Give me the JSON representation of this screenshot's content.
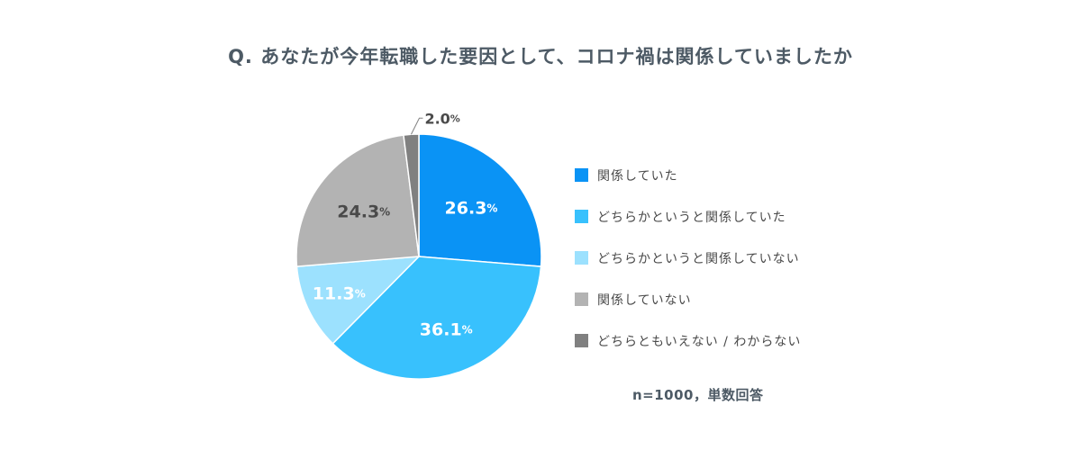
{
  "title": "Q. あなたが今年転職した要因として、コロナ禍は関係していましたか",
  "note": "n=1000，単数回答",
  "chart_data": {
    "type": "pie",
    "title": "Q. あなたが今年転職した要因として、コロナ禍は関係していましたか",
    "unit": "%",
    "slices": [
      {
        "label": "関係していた",
        "value": 26.3,
        "value_text": "26.3",
        "color": "#0a93f5",
        "label_color": "#ffffff"
      },
      {
        "label": "どちらかというと関係していた",
        "value": 36.1,
        "value_text": "36.1",
        "color": "#38c1fd",
        "label_color": "#ffffff"
      },
      {
        "label": "どちらかというと関係していない",
        "value": 11.3,
        "value_text": "11.3",
        "color": "#9ce1fe",
        "label_color": "#ffffff"
      },
      {
        "label": "関係していない",
        "value": 24.3,
        "value_text": "24.3",
        "color": "#b3b3b3",
        "label_color": "#4a4a4a"
      },
      {
        "label": "どちらともいえない / わからない",
        "value": 2.0,
        "value_text": "2.0",
        "color": "#808080",
        "label_color": "#4a4a4a"
      }
    ]
  }
}
